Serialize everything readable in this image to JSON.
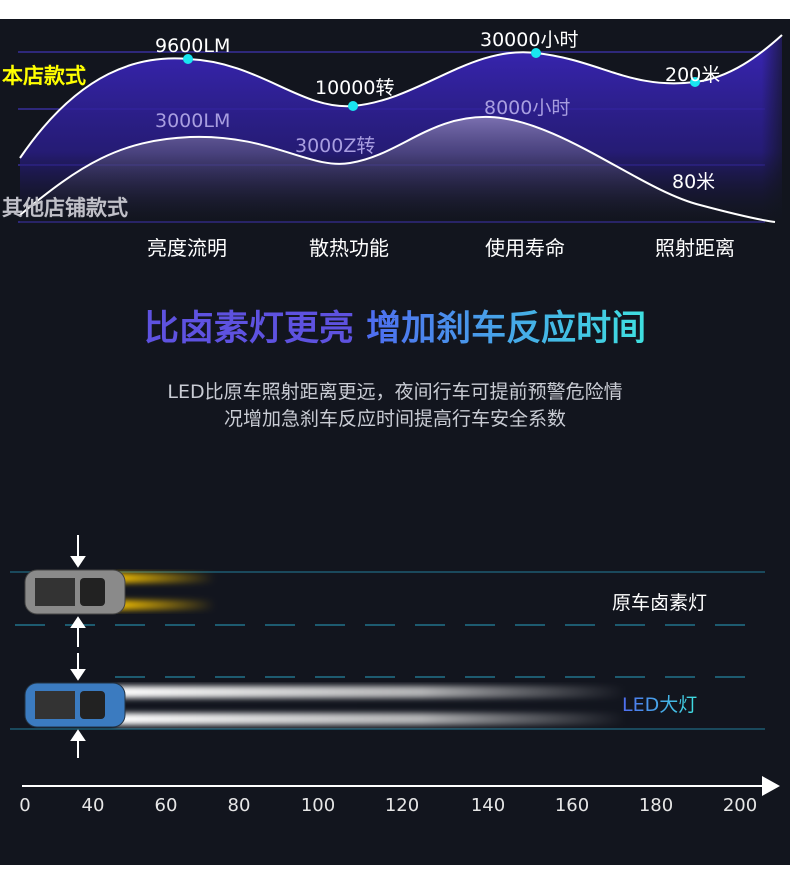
{
  "comparison": {
    "ours_label": "本店款式",
    "others_label": "其他店铺款式",
    "categories": [
      "亮度流明",
      "散热功能",
      "使用寿命",
      "照射距离"
    ],
    "ours_values": [
      "9600LM",
      "10000转",
      "30000小时",
      "200米"
    ],
    "others_values": [
      "3000LM",
      "3000Z转",
      "8000小时",
      "80米"
    ],
    "colors": {
      "ours_label": "#ffff00",
      "ours_fill": "#3a26b0",
      "point": "#19e6f0"
    }
  },
  "headline": {
    "part1": "比卤素灯更亮",
    "part2": "增加刹车反应时间"
  },
  "description": {
    "line1": "LED比原车照射距离更远，夜间行车可提前预警危险情",
    "line2": "况增加急刹车反应时间提高行车安全系数"
  },
  "distance": {
    "halogen_label": "原车卤素灯",
    "led_label": "LED大灯",
    "axis_ticks": [
      "0",
      "40",
      "60",
      "80",
      "100",
      "120",
      "140",
      "160",
      "180",
      "200"
    ]
  }
}
